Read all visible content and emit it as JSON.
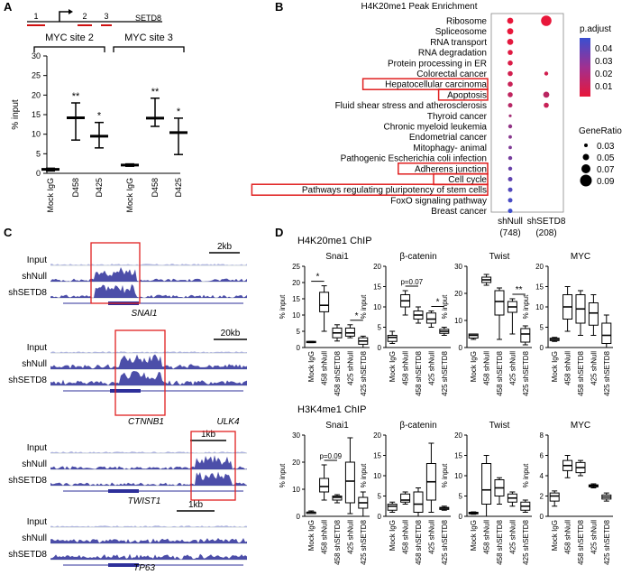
{
  "panels": {
    "A": {
      "letter": "A",
      "gene_name": "SETD8",
      "primer_labels": [
        "1",
        "2",
        "3"
      ],
      "groups": [
        {
          "label": "MYC site 2",
          "categories": [
            "Mock IgG",
            "D458",
            "D425"
          ],
          "means": [
            1,
            14.2,
            9.5
          ],
          "lower": [
            0.6,
            8.5,
            6.5
          ],
          "upper": [
            1.3,
            18,
            13
          ],
          "stars": [
            "",
            "**",
            "*"
          ]
        },
        {
          "label": "MYC site 3",
          "categories": [
            "Mock IgG",
            "D458",
            "D425"
          ],
          "means": [
            2.1,
            14.1,
            10.4
          ],
          "lower": [
            1.8,
            12,
            4.8
          ],
          "upper": [
            2.4,
            19.2,
            14.1
          ],
          "stars": [
            "",
            "**",
            "*"
          ]
        }
      ],
      "ylabel": "% input",
      "yticks": [
        0,
        5,
        10,
        15,
        20,
        25,
        30
      ],
      "ylim": [
        0,
        30
      ]
    },
    "B": {
      "letter": "B",
      "title": "H4K20me1 Peak Enrichment",
      "terms": [
        "Ribosome",
        "Spliceosome",
        "RNA transport",
        "RNA degradation",
        "Protein processing in ER",
        "Colorectal cancer",
        "Hepatocellular carcinoma",
        "Apoptosis",
        "Fluid shear stress and atherosclerosis",
        "Thyroid cancer",
        "Chronic myeloid leukemia",
        "Endometrial cancer",
        "Mitophagy- animal",
        "Pathogenic Escherichia coli infection",
        "Adherens junction",
        "Cell cycle",
        "Pathways regulating pluripotency of stem cells",
        "FoxO signaling pathway",
        "Breast cancer"
      ],
      "boxed_terms": [
        6,
        7,
        14,
        15,
        16
      ],
      "columns": [
        {
          "label": "shNull",
          "count": "(748)"
        },
        {
          "label": "shSETD8",
          "count": "(208)"
        }
      ],
      "legend_padjust_title": "p.adjust",
      "legend_padjust_ticks": [
        "0.04",
        "0.03",
        "0.02",
        "0.01"
      ],
      "legend_generatio_title": "GeneRatio",
      "legend_generatio_ticks": [
        "0.03",
        "0.05",
        "0.07",
        "0.09"
      ],
      "colors": {
        "high": "#3a4fd0",
        "low": "#e8173a",
        "box": "#e02020"
      }
    },
    "C": {
      "letter": "C",
      "tracks": [
        {
          "gene": "SNAI1",
          "scale": "2kb",
          "rows": [
            "Input",
            "shNull",
            "shSETD8"
          ],
          "extra_gene": ""
        },
        {
          "gene": "CTNNB1",
          "scale": "20kb",
          "rows": [
            "Input",
            "shNull",
            "shSETD8"
          ],
          "extra_gene": "ULK4"
        },
        {
          "gene": "TWIST1",
          "scale": "1kb",
          "rows": [
            "Input",
            "shNull",
            "shSETD8"
          ],
          "extra_gene": ""
        },
        {
          "gene": "TP63",
          "scale": "1kb",
          "rows": [
            "Input",
            "shNull",
            "shSETD8"
          ],
          "extra_gene": ""
        }
      ],
      "colors": {
        "signal": "#2d2f9a",
        "box": "#e02020"
      }
    },
    "D": {
      "letter": "D",
      "row_titles": [
        "H4K20me1 ChIP",
        "H3K4me1 ChIP"
      ],
      "categories": [
        "Mock IgG",
        "458 shNull",
        "458 shSETD8",
        "425 shNull",
        "425 shSETD8"
      ],
      "ylabel": "% input"
    }
  },
  "chart_data": [
    {
      "type": "bar",
      "title": "",
      "ylabel": "% input",
      "series": [
        {
          "name": "MYC site 2",
          "categories": [
            "Mock IgG",
            "D458",
            "D425"
          ],
          "values": [
            1,
            14.2,
            9.5
          ]
        },
        {
          "name": "MYC site 3",
          "categories": [
            "Mock IgG",
            "D458",
            "D425"
          ],
          "values": [
            2.1,
            14.1,
            10.4
          ]
        }
      ],
      "ylim": [
        0,
        30
      ]
    },
    {
      "type": "scatter",
      "title": "H4K20me1 Peak Enrichment",
      "x": [
        "shNull",
        "shSETD8"
      ],
      "points_shNull": [
        {
          "term": "Ribosome",
          "gene_ratio": 0.05,
          "p_adjust": 0.005
        },
        {
          "term": "Spliceosome",
          "gene_ratio": 0.05,
          "p_adjust": 0.005
        },
        {
          "term": "RNA transport",
          "gene_ratio": 0.05,
          "p_adjust": 0.006
        },
        {
          "term": "RNA degradation",
          "gene_ratio": 0.04,
          "p_adjust": 0.007
        },
        {
          "term": "Protein processing in ER",
          "gene_ratio": 0.04,
          "p_adjust": 0.008
        },
        {
          "term": "Colorectal cancer",
          "gene_ratio": 0.04,
          "p_adjust": 0.01
        },
        {
          "term": "Hepatocellular carcinoma",
          "gene_ratio": 0.04,
          "p_adjust": 0.012
        },
        {
          "term": "Apoptosis",
          "gene_ratio": 0.04,
          "p_adjust": 0.014
        },
        {
          "term": "Fluid shear stress and atherosclerosis",
          "gene_ratio": 0.035,
          "p_adjust": 0.016
        },
        {
          "term": "Thyroid cancer",
          "gene_ratio": 0.02,
          "p_adjust": 0.02
        },
        {
          "term": "Chronic myeloid leukemia",
          "gene_ratio": 0.03,
          "p_adjust": 0.024
        },
        {
          "term": "Endometrial cancer",
          "gene_ratio": 0.025,
          "p_adjust": 0.026
        },
        {
          "term": "Mitophagy- animal",
          "gene_ratio": 0.025,
          "p_adjust": 0.028
        },
        {
          "term": "Pathogenic Escherichia coli infection",
          "gene_ratio": 0.03,
          "p_adjust": 0.03
        },
        {
          "term": "Adherens junction",
          "gene_ratio": 0.03,
          "p_adjust": 0.033
        },
        {
          "term": "Cell cycle",
          "gene_ratio": 0.035,
          "p_adjust": 0.035
        },
        {
          "term": "Pathways regulating pluripotency of stem cells",
          "gene_ratio": 0.035,
          "p_adjust": 0.038
        },
        {
          "term": "FoxO signaling pathway",
          "gene_ratio": 0.035,
          "p_adjust": 0.04
        },
        {
          "term": "Breast cancer",
          "gene_ratio": 0.035,
          "p_adjust": 0.042
        }
      ],
      "points_shSETD8": [
        {
          "term": "Ribosome",
          "gene_ratio": 0.09,
          "p_adjust": 0.005
        },
        {
          "term": "Colorectal cancer",
          "gene_ratio": 0.03,
          "p_adjust": 0.01
        },
        {
          "term": "Apoptosis",
          "gene_ratio": 0.05,
          "p_adjust": 0.015
        },
        {
          "term": "Fluid shear stress and atherosclerosis",
          "gene_ratio": 0.04,
          "p_adjust": 0.012
        }
      ]
    },
    {
      "type": "box",
      "title": "H4K20me1 ChIP",
      "categories": [
        "Mock IgG",
        "458 shNull",
        "458 shSETD8",
        "425 shNull",
        "425 shSETD8"
      ],
      "ylabel": "% input",
      "panels": [
        {
          "title": "Snai1",
          "yticks": [
            0,
            5,
            10,
            15,
            20,
            25
          ],
          "ylim": [
            0,
            25
          ],
          "boxes": [
            [
              1.5,
              1.5,
              1.7,
              1.9,
              1.9
            ],
            [
              5,
              11,
              13,
              17,
              19
            ],
            [
              2,
              3,
              4.5,
              6,
              7
            ],
            [
              3,
              3.5,
              4.5,
              6,
              7
            ],
            [
              0,
              1,
              2,
              3,
              3.5
            ]
          ],
          "sigs": [
            {
              "from": 0,
              "to": 1,
              "label": "*"
            },
            {
              "from": 3,
              "to": 4,
              "label": "*"
            }
          ]
        },
        {
          "title": "β-catenin",
          "yticks": [
            0,
            5,
            10,
            15,
            20
          ],
          "ylim": [
            0,
            20
          ],
          "boxes": [
            [
              1,
              1.5,
              2.5,
              3,
              4
            ],
            [
              8,
              10,
              11.5,
              13,
              14
            ],
            [
              6,
              7,
              8,
              9,
              10
            ],
            [
              5,
              6,
              7,
              8.5,
              9
            ],
            [
              3,
              3.5,
              4,
              4.5,
              5
            ]
          ],
          "sigs": [
            {
              "from": 1,
              "to": 2,
              "label": "p=0.07"
            },
            {
              "from": 3,
              "to": 4,
              "label": "*"
            }
          ]
        },
        {
          "title": "Twist",
          "yticks": [
            0,
            10,
            20,
            30
          ],
          "ylim": [
            0,
            30
          ],
          "boxes": [
            [
              3,
              3.5,
              4.5,
              5,
              5
            ],
            [
              23,
              24,
              25,
              26,
              27
            ],
            [
              3,
              12,
              17,
              21,
              22
            ],
            [
              5,
              13,
              15,
              17,
              18
            ],
            [
              1,
              2,
              5,
              7,
              8
            ]
          ],
          "sigs": [
            {
              "from": 3,
              "to": 4,
              "label": "**"
            }
          ]
        },
        {
          "title": "MYC",
          "yticks": [
            0,
            5,
            10,
            15,
            20
          ],
          "ylim": [
            0,
            20
          ],
          "boxes": [
            [
              1.5,
              1.7,
              2,
              2.3,
              2.5
            ],
            [
              4,
              7,
              10,
              13,
              15
            ],
            [
              3,
              6,
              9.5,
              13,
              14
            ],
            [
              3,
              5.5,
              8.5,
              11,
              13
            ],
            [
              0,
              1,
              3,
              6,
              8
            ]
          ],
          "sigs": []
        }
      ]
    },
    {
      "type": "box",
      "title": "H3K4me1 ChIP",
      "categories": [
        "Mock IgG",
        "458 shNull",
        "458 shSETD8",
        "425 shNull",
        "425 shSETD8"
      ],
      "ylabel": "% input",
      "panels": [
        {
          "title": "Snai1",
          "yticks": [
            0,
            10,
            20,
            30
          ],
          "ylim": [
            0,
            30
          ],
          "boxes": [
            [
              1,
              1,
              1.5,
              1.5,
              2
            ],
            [
              6,
              9,
              11,
              14,
              19
            ],
            [
              5,
              6,
              7,
              7.5,
              8
            ],
            [
              1,
              5,
              13,
              20,
              29
            ],
            [
              0,
              3,
              5,
              7,
              9
            ]
          ],
          "sigs": [
            {
              "from": 1,
              "to": 2,
              "label": "p=0.09"
            }
          ]
        },
        {
          "title": "β-catenin",
          "yticks": [
            0,
            5,
            10,
            15,
            20
          ],
          "ylim": [
            0,
            20
          ],
          "boxes": [
            [
              1,
              1.5,
              2.5,
              3,
              3.5
            ],
            [
              3,
              3.5,
              4,
              5.5,
              6
            ],
            [
              0,
              1,
              3,
              6,
              7
            ],
            [
              1,
              4,
              8.5,
              13,
              18
            ],
            [
              1.5,
              1.7,
              2,
              2.2,
              2.5
            ]
          ],
          "sigs": []
        },
        {
          "title": "Twist",
          "yticks": [
            0,
            5,
            10,
            15,
            20
          ],
          "ylim": [
            0,
            20
          ],
          "boxes": [
            [
              0.5,
              0.6,
              0.8,
              1,
              1.1
            ],
            [
              0,
              3,
              6.5,
              13,
              15
            ],
            [
              3,
              5,
              7,
              9,
              9.5
            ],
            [
              2.5,
              3.5,
              4.5,
              5.5,
              6
            ],
            [
              1,
              1.5,
              2.5,
              3.5,
              4
            ]
          ],
          "sigs": []
        },
        {
          "title": "MYC",
          "yticks": [
            0,
            2,
            4,
            6,
            8
          ],
          "ylim": [
            0,
            8
          ],
          "boxes": [
            [
              1,
              1.5,
              2,
              2.3,
              2.5
            ],
            [
              3.8,
              4.5,
              5,
              5.5,
              6
            ],
            [
              4,
              4.3,
              4.8,
              5.3,
              5.5
            ],
            [
              2.8,
              2.9,
              3,
              3.1,
              3.2
            ],
            [
              1.5,
              1.7,
              1.9,
              2.1,
              2.3
            ]
          ],
          "sigs": []
        }
      ]
    }
  ]
}
